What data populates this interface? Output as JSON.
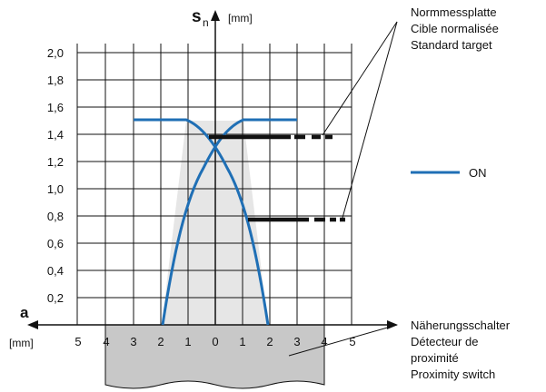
{
  "y_axis": {
    "symbol": "s",
    "subscript": "n",
    "unit": "[mm]",
    "ticks": [
      "2,0",
      "1,8",
      "1,6",
      "1,4",
      "1,2",
      "1,0",
      "0,8",
      "0,6",
      "0,4",
      "0,2"
    ]
  },
  "x_axis": {
    "symbol": "a",
    "unit": "[mm]",
    "ticks": [
      "5",
      "4",
      "3",
      "2",
      "1",
      "0",
      "1",
      "2",
      "3",
      "4",
      "5"
    ]
  },
  "target_label": [
    "Normmessplatte",
    "Cible normalisée",
    "Standard target"
  ],
  "sensor_label": [
    "Näherungsschalter",
    "Détecteur de",
    "proximité",
    "Proximity switch"
  ],
  "legend": {
    "on_label": "ON",
    "on_color": "#1f6fb5"
  },
  "colors": {
    "curve": "#1f6fb5",
    "shade": "#e6e6e6",
    "sensor_body": "#c8c8c8",
    "grid": "#111111"
  },
  "curve_data": {
    "x_range": [
      -4,
      4
    ],
    "y_range": [
      0,
      2.0
    ],
    "plateau_sn": 1.49,
    "crossing_sn": 1.3,
    "target_heights_sn": [
      1.38,
      0.77
    ]
  }
}
